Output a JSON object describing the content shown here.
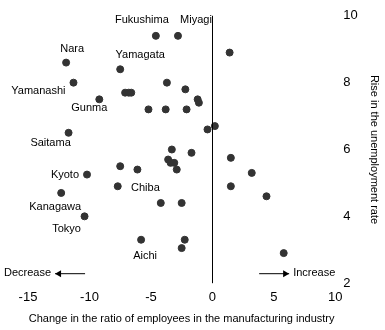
{
  "chart_data": {
    "type": "scatter",
    "x_label": "Change in the ratio of employees in the manufacturing industry",
    "y_label": "Rise in the unemployment rate",
    "annotations": [
      "Decrease",
      "Increase"
    ],
    "x": [
      -4.6,
      -2.8,
      -11.9,
      -7.5,
      -11.3,
      -9.2,
      -11.7,
      -10.2,
      -6.1,
      -12.3,
      -10.4,
      -5.8,
      1.4,
      -7.1,
      -6.8,
      -6.6,
      -3.7,
      -2.2,
      -5.2,
      -3.8,
      -2.1,
      -1.2,
      -1.1,
      -0.4,
      0.2,
      -3.3,
      -1.7,
      -7.5,
      -3.6,
      -3.4,
      -3.1,
      -2.9,
      -7.7,
      1.5,
      3.2,
      1.5,
      4.4,
      -4.2,
      -2.5,
      -2.25,
      -2.5,
      5.8
    ],
    "values": [
      9.4,
      9.4,
      8.6,
      8.4,
      8.0,
      7.5,
      6.5,
      5.25,
      5.4,
      4.7,
      4.0,
      3.3,
      8.9,
      7.7,
      7.7,
      7.7,
      8.0,
      7.8,
      7.2,
      7.2,
      7.2,
      7.5,
      7.4,
      6.6,
      6.7,
      6.0,
      5.9,
      5.5,
      5.7,
      5.6,
      5.6,
      5.4,
      4.9,
      5.75,
      5.3,
      4.9,
      4.6,
      4.4,
      4.4,
      3.3,
      3.05,
      2.9
    ],
    "labels": [
      "Fukushima",
      "Miyagi",
      "Nara",
      "Yamagata",
      "Yamanashi",
      "Gunma",
      "Saitama",
      "Kyoto",
      "Chiba",
      "Kanagawa",
      "Tokyo",
      "Aichi",
      null,
      null,
      null,
      null,
      null,
      null,
      null,
      null,
      null,
      null,
      null,
      null,
      null,
      null,
      null,
      null,
      null,
      null,
      null,
      null,
      null,
      null,
      null,
      null,
      null,
      null,
      null,
      null,
      null,
      null
    ],
    "color": "#333333",
    "marker": "circle",
    "xlim": [
      -15,
      10
    ],
    "xticks": [
      -15,
      -10,
      -5,
      0,
      5,
      10
    ],
    "ylim": [
      2,
      10
    ],
    "yticks": [
      2,
      4,
      6,
      8,
      10
    ]
  }
}
